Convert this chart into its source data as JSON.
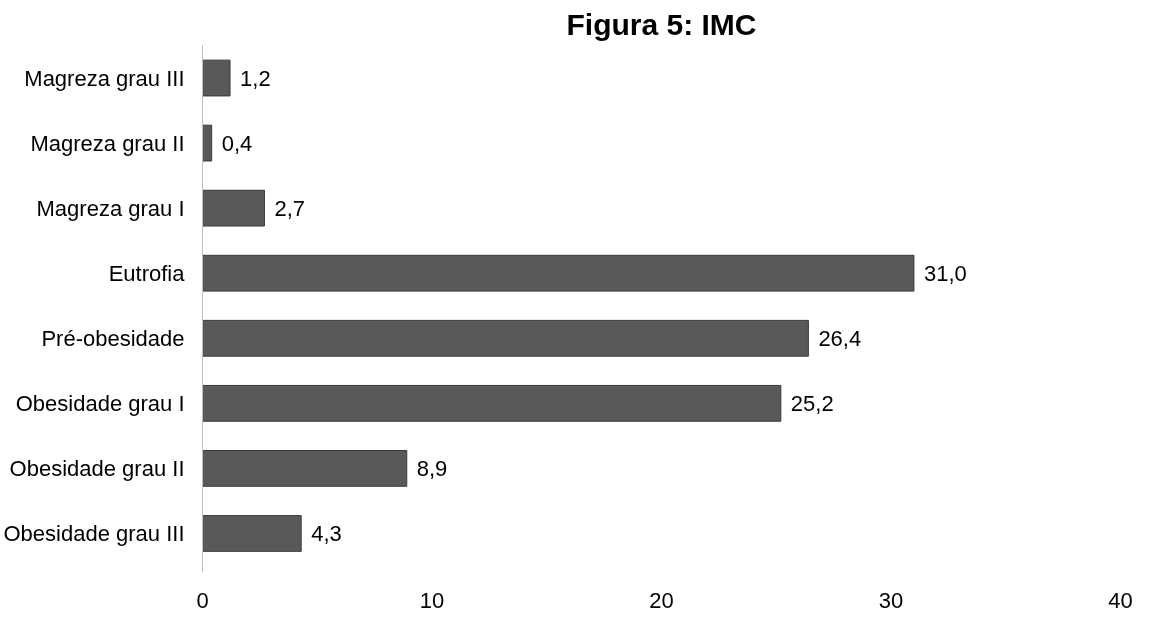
{
  "chart_data": {
    "type": "bar",
    "orientation": "horizontal",
    "title": "Figura 5: IMC",
    "categories": [
      "Magreza grau III",
      "Magreza grau II",
      "Magreza grau I",
      "Eutrofia",
      "Pré-obesidade",
      "Obesidade grau I",
      "Obesidade grau II",
      "Obesidade grau III"
    ],
    "values": [
      1.2,
      0.4,
      2.7,
      31.0,
      26.4,
      25.2,
      8.9,
      4.3
    ],
    "value_labels": [
      "1,2",
      "0,4",
      "2,7",
      "31,0",
      "26,4",
      "25,2",
      "8,9",
      "4,3"
    ],
    "color": "#595959",
    "xlim": [
      0,
      40
    ],
    "xticks": [
      0,
      10,
      20,
      30,
      40
    ],
    "grid": false
  }
}
